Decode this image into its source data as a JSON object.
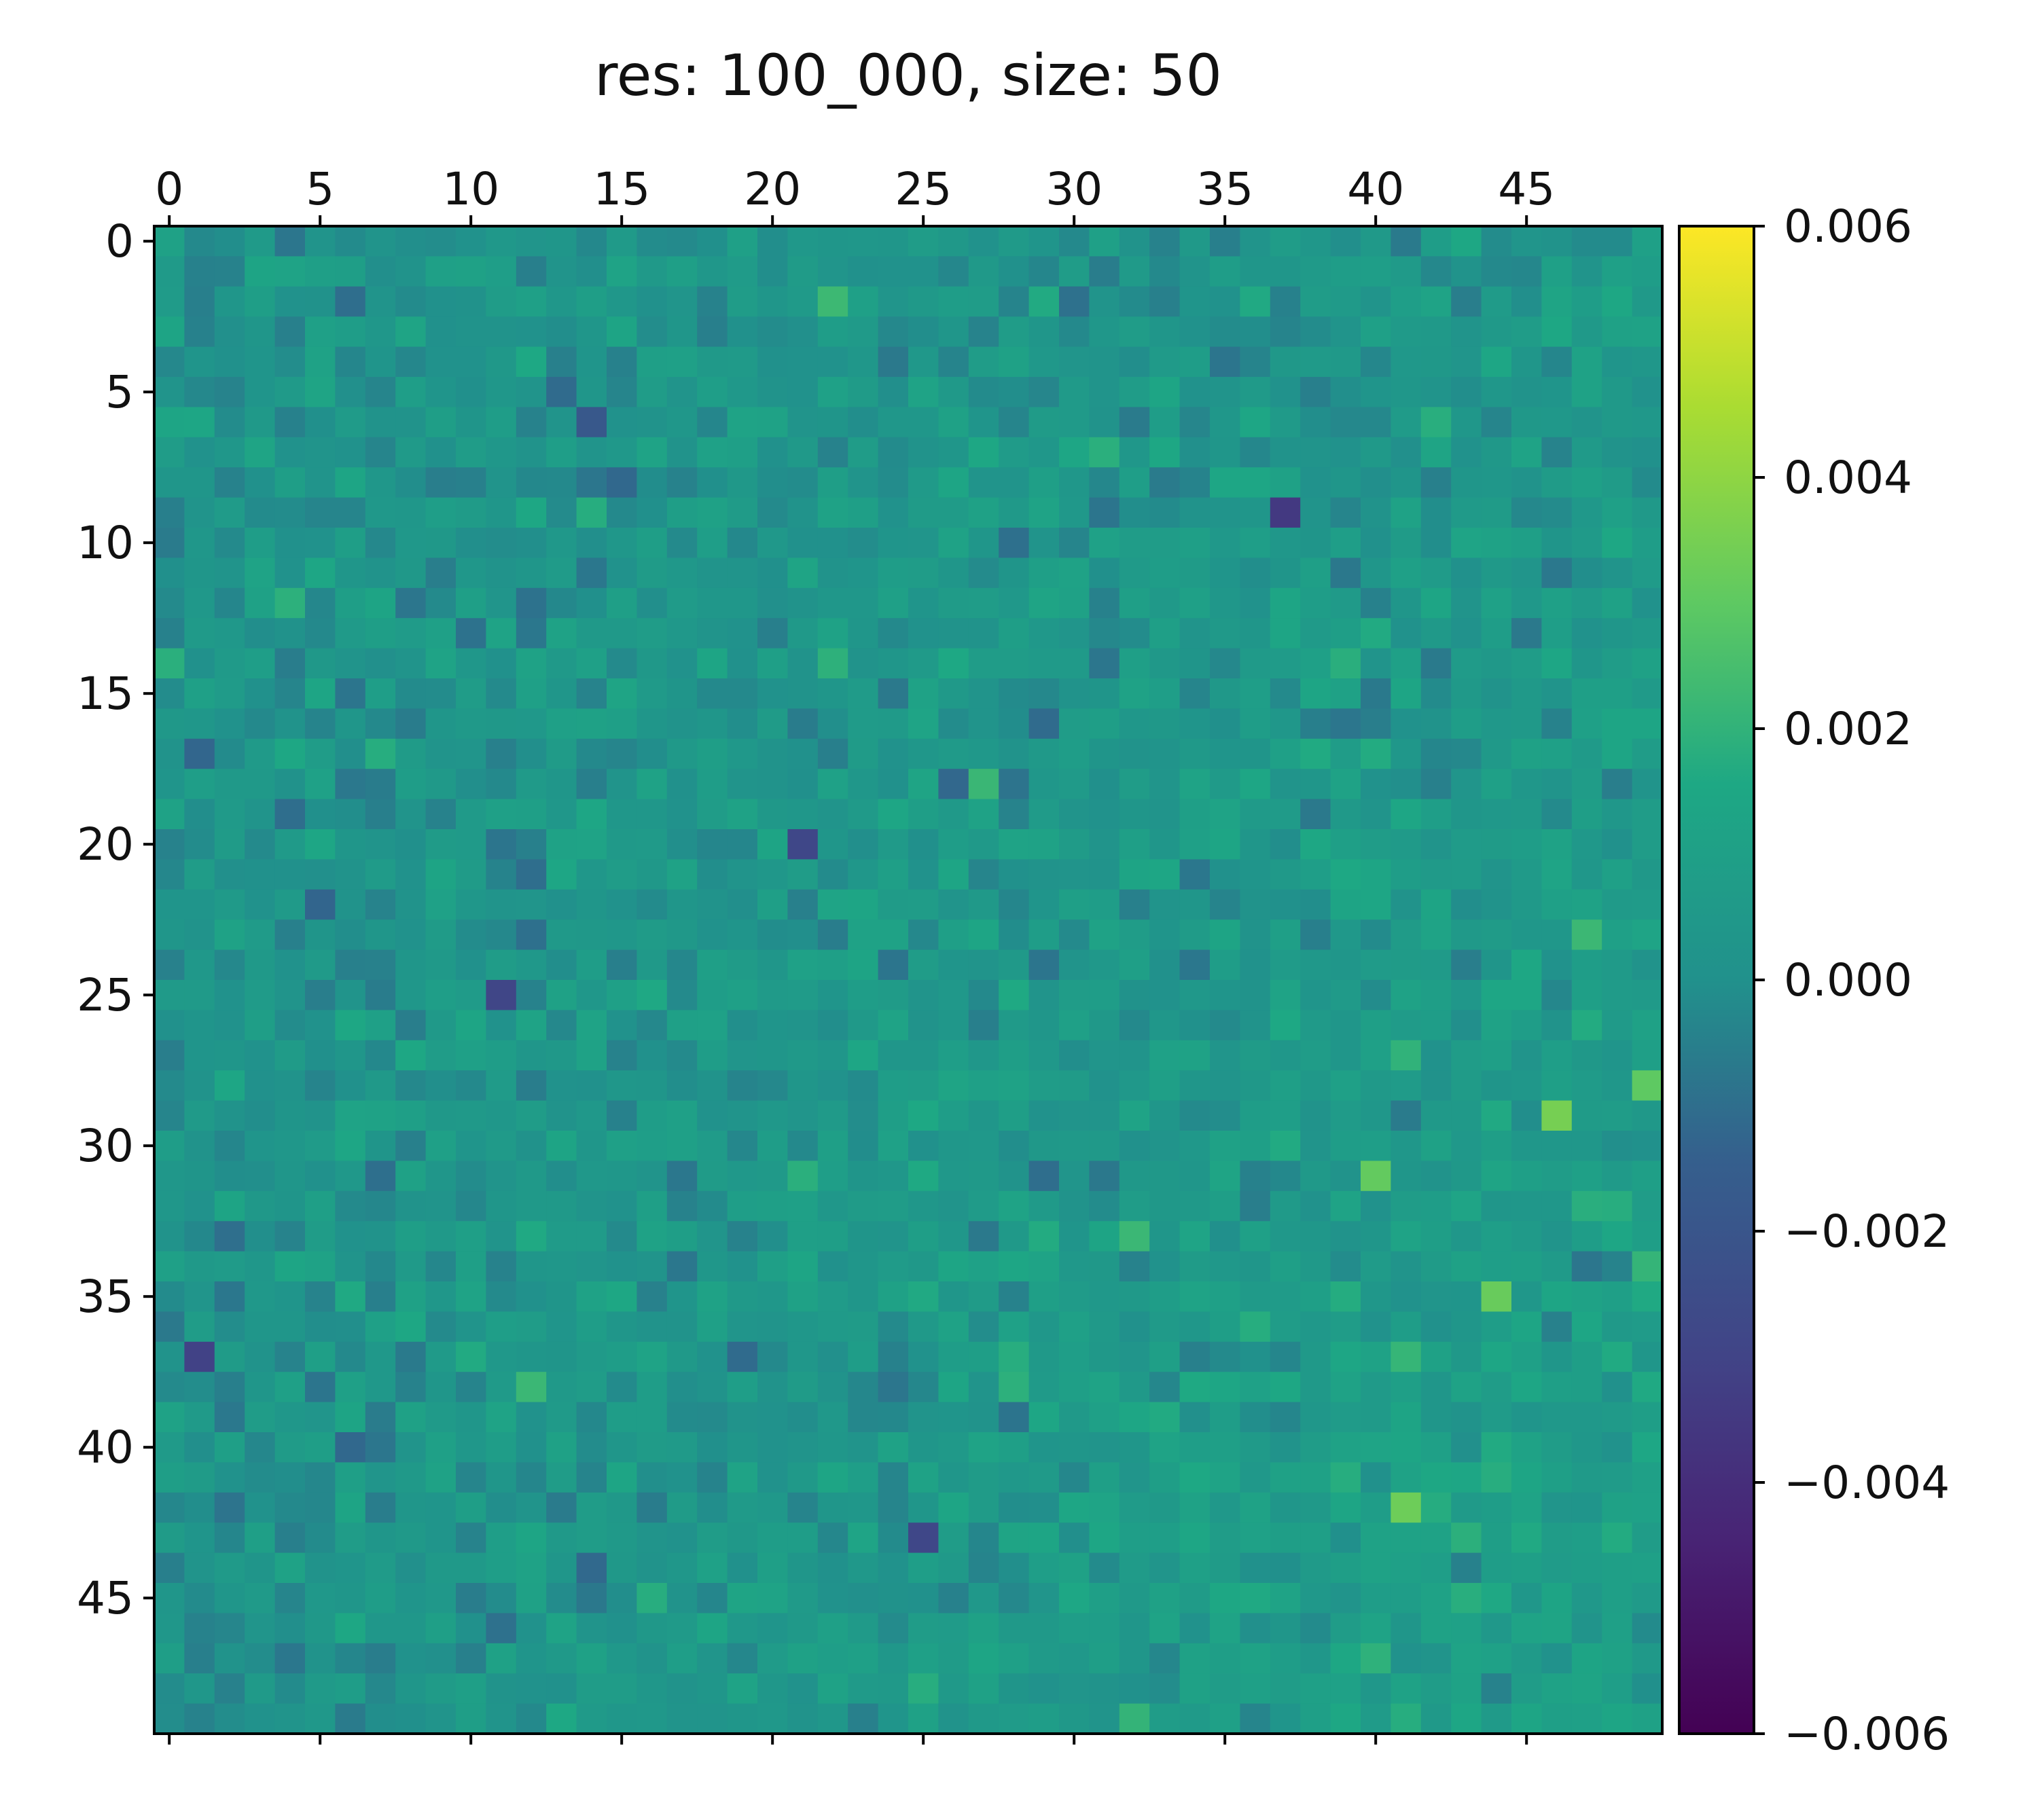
{
  "chart_data": {
    "type": "heatmap",
    "title": "res: 100_000, size: 50",
    "colormap": "viridis",
    "rows": 50,
    "cols": 50,
    "vmin": -0.006,
    "vmax": 0.006,
    "x_ticks": [
      0,
      5,
      10,
      15,
      20,
      25,
      30,
      35,
      40,
      45
    ],
    "x_tick_labels": [
      "0",
      "5",
      "10",
      "15",
      "20",
      "25",
      "30",
      "35",
      "40",
      "45"
    ],
    "x_tick_position": "top",
    "y_ticks": [
      0,
      5,
      10,
      15,
      20,
      25,
      30,
      35,
      40,
      45
    ],
    "y_tick_labels": [
      "0",
      "5",
      "10",
      "15",
      "20",
      "25",
      "30",
      "35",
      "40",
      "45"
    ],
    "colorbar": {
      "ticks": [
        0.006,
        0.004,
        0.002,
        0.0,
        -0.002,
        -0.004,
        -0.006
      ],
      "tick_labels": [
        "0.006",
        "0.004",
        "0.002",
        "0.000",
        "−0.002",
        "−0.004",
        "−0.006"
      ],
      "placement": "right"
    },
    "value_pattern": {
      "description_of_field": "noisy field centered near 0 with mean about 0.0005, standard deviation about 0.0006",
      "notable_cells": [
        {
          "row": 29,
          "col": 46,
          "value": 0.0035
        },
        {
          "row": 42,
          "col": 41,
          "value": 0.0033
        },
        {
          "row": 35,
          "col": 44,
          "value": 0.0032
        },
        {
          "row": 31,
          "col": 40,
          "value": 0.0031
        },
        {
          "row": 28,
          "col": 49,
          "value": 0.003
        },
        {
          "row": 9,
          "col": 37,
          "value": -0.0035
        },
        {
          "row": 37,
          "col": 1,
          "value": -0.0031
        },
        {
          "row": 25,
          "col": 11,
          "value": -0.0029
        },
        {
          "row": 20,
          "col": 21,
          "value": -0.0028
        },
        {
          "row": 43,
          "col": 25,
          "value": -0.0028
        }
      ]
    }
  }
}
